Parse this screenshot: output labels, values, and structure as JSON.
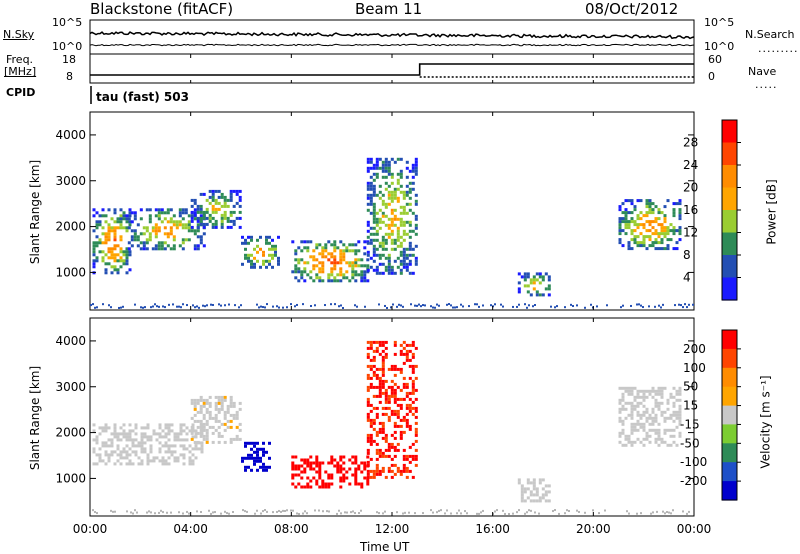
{
  "header": {
    "station": "Blackstone (fitACF)",
    "beam": "Beam 11",
    "date": "08/Oct/2012"
  },
  "summary": {
    "nsky_label": "N.Sky",
    "nsky_ticks": [
      "10^5",
      "10^0"
    ],
    "nsearch_label": "N.Search",
    "nsearch_ticks": [
      "10^5",
      "10^0"
    ],
    "freq_label_1": "Freq.",
    "freq_label_2": "[MHz]",
    "freq_ticks": [
      "18",
      "8"
    ],
    "nave_label": "Nave",
    "nave_ticks": [
      "60",
      "0"
    ],
    "cpid_label": "CPID",
    "cpid_value": "tau (fast) 503"
  },
  "colors": {
    "power": [
      "#1a1aff",
      "#234fb3",
      "#2e8b57",
      "#9acd32",
      "#ffa500",
      "#ff8c00",
      "#ff4500",
      "#ff0000"
    ],
    "velocity": [
      "#0000cc",
      "#1e50c8",
      "#2e8b57",
      "#7ccd32",
      "#c8c8c8",
      "#ffa500",
      "#ff8c00",
      "#ff4500",
      "#ff0000"
    ],
    "ground": "#b4b4b4"
  },
  "chart_data": [
    {
      "type": "heatmap",
      "title": "",
      "ylabel": "Slant Range [km]",
      "xlabel": "Time UT",
      "xlim_hours": [
        0,
        24
      ],
      "x_ticks": [
        "00:00",
        "04:00",
        "08:00",
        "12:00",
        "16:00",
        "20:00",
        "00:00"
      ],
      "ylim": [
        180,
        4500
      ],
      "y_ticks": [
        "1000",
        "2000",
        "3000",
        "4000"
      ],
      "colorbar_label": "Power [dB]",
      "colorbar_ticks": [
        "28",
        "24",
        "20",
        "16",
        "12",
        "8",
        "4"
      ],
      "colorbar_range": [
        0,
        32
      ],
      "echo_regions": [
        {
          "t0": 0.1,
          "t1": 1.6,
          "r0": 1000,
          "r1": 2400,
          "peak_dB": 26
        },
        {
          "t0": 1.5,
          "t1": 4.5,
          "r0": 1500,
          "r1": 2400,
          "peak_dB": 22
        },
        {
          "t0": 4.0,
          "t1": 6.0,
          "r0": 2000,
          "r1": 2800,
          "peak_dB": 18
        },
        {
          "t0": 6.0,
          "t1": 7.5,
          "r0": 1100,
          "r1": 1800,
          "peak_dB": 22
        },
        {
          "t0": 8.0,
          "t1": 11.0,
          "r0": 800,
          "r1": 1700,
          "peak_dB": 28
        },
        {
          "t0": 11.0,
          "t1": 13.0,
          "r0": 1000,
          "r1": 3500,
          "peak_dB": 20
        },
        {
          "t0": 17.0,
          "t1": 18.3,
          "r0": 500,
          "r1": 1000,
          "peak_dB": 20
        },
        {
          "t0": 21.0,
          "t1": 23.5,
          "r0": 1500,
          "r1": 2600,
          "peak_dB": 24
        }
      ]
    },
    {
      "type": "heatmap",
      "title": "",
      "ylabel": "Slant Range [km]",
      "xlabel": "Time UT",
      "xlim_hours": [
        0,
        24
      ],
      "x_ticks": [
        "00:00",
        "04:00",
        "08:00",
        "12:00",
        "16:00",
        "20:00",
        "00:00"
      ],
      "ylim": [
        180,
        4500
      ],
      "y_ticks": [
        "1000",
        "2000",
        "3000",
        "4000"
      ],
      "colorbar_label": "Velocity [m s⁻¹]",
      "colorbar_ticks": [
        "200",
        "100",
        "50",
        "15",
        "-15",
        "-50",
        "-100",
        "-200"
      ],
      "colorbar_range": [
        -250,
        250
      ],
      "echo_regions": [
        {
          "t0": 0.1,
          "t1": 4.5,
          "r0": 1300,
          "r1": 2200,
          "velocity": 0
        },
        {
          "t0": 4.0,
          "t1": 6.0,
          "r0": 1800,
          "r1": 2800,
          "velocity": 10
        },
        {
          "t0": 6.0,
          "t1": 7.2,
          "r0": 1200,
          "r1": 1800,
          "velocity": -220
        },
        {
          "t0": 8.0,
          "t1": 11.0,
          "r0": 800,
          "r1": 1500,
          "velocity": 220
        },
        {
          "t0": 11.0,
          "t1": 13.0,
          "r0": 1000,
          "r1": 4000,
          "velocity": 200
        },
        {
          "t0": 17.0,
          "t1": 18.3,
          "r0": 500,
          "r1": 1000,
          "velocity": 0
        },
        {
          "t0": 21.0,
          "t1": 23.5,
          "r0": 1700,
          "r1": 3000,
          "velocity": 0
        }
      ]
    }
  ]
}
